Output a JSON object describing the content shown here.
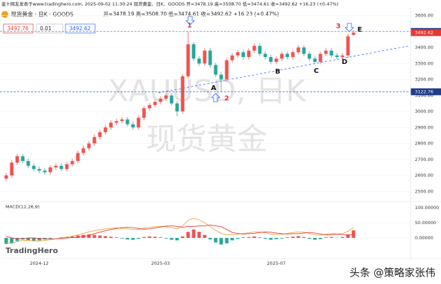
{
  "header": {
    "source_line": "金十网友发表于www.tradinghero.com, 2025-09-02 11:30:24 现货黄金、日K、GOODS 开=3478.19 高=3508.70 低=3474.61 收=3492.62 +16.23 (+0.47%)",
    "symbol": "现货黄金 · 日K · GOODS",
    "ohlc": "开=3478.19 高=3508.70 低=3474.61 收=3492.62 +16.23 (+0.47%)",
    "inputs": [
      "3492.76",
      "0.01",
      "3492.62"
    ]
  },
  "chart_data": [
    {
      "type": "candlestick",
      "watermark": [
        "XAUUSD, 日K",
        "现货黄金"
      ],
      "categories": [
        null,
        null,
        null,
        null,
        null,
        null,
        "2024-12",
        null,
        null,
        null,
        null,
        null,
        null,
        null,
        null,
        null,
        null,
        null,
        null,
        null,
        null,
        null,
        null,
        null,
        null,
        null,
        null,
        null,
        "2025-03",
        null,
        null,
        null,
        null,
        null,
        null,
        null,
        null,
        null,
        null,
        null,
        null,
        null,
        null,
        null,
        null,
        null,
        null,
        null,
        null,
        "2025-07",
        null,
        null,
        null,
        null,
        null,
        null,
        null,
        null,
        null,
        null,
        null,
        null,
        null,
        null
      ],
      "open": [
        2580,
        2600,
        2680,
        2720,
        2690,
        2660,
        2640,
        2630,
        2620,
        2650,
        2660,
        2640,
        2670,
        2690,
        2740,
        2770,
        2800,
        2840,
        2870,
        2900,
        2930,
        2940,
        2950,
        2920,
        2900,
        2960,
        3020,
        3040,
        3060,
        3080,
        3100,
        3050,
        3000,
        3220,
        3420,
        3330,
        3300,
        3380,
        3290,
        3230,
        3200,
        3320,
        3350,
        3370,
        3340,
        3380,
        3410,
        3360,
        3340,
        3310,
        3330,
        3360,
        3340,
        3370,
        3400,
        3360,
        3330,
        3310,
        3360,
        3380,
        3350,
        3340,
        3350,
        3478.19
      ],
      "high": [
        2615,
        2695,
        2735,
        2735,
        2705,
        2675,
        2655,
        2645,
        2665,
        2675,
        2675,
        2685,
        2705,
        2755,
        2785,
        2815,
        2855,
        2885,
        2915,
        2945,
        2955,
        2965,
        2965,
        2935,
        2975,
        3035,
        3055,
        3075,
        3095,
        3115,
        3115,
        3065,
        3235,
        3500,
        3435,
        3345,
        3395,
        3395,
        3305,
        3245,
        3335,
        3365,
        3385,
        3385,
        3395,
        3425,
        3425,
        3375,
        3355,
        3345,
        3375,
        3375,
        3385,
        3415,
        3415,
        3375,
        3345,
        3375,
        3395,
        3395,
        3365,
        3365,
        3485,
        3508.7
      ],
      "low": [
        2565,
        2585,
        2665,
        2675,
        2645,
        2625,
        2615,
        2605,
        2605,
        2635,
        2625,
        2625,
        2655,
        2675,
        2725,
        2755,
        2785,
        2825,
        2855,
        2885,
        2915,
        2925,
        2905,
        2885,
        2885,
        2945,
        3005,
        3025,
        3045,
        3065,
        3035,
        2970,
        2985,
        3205,
        3315,
        3285,
        3285,
        3275,
        3215,
        3120,
        3185,
        3305,
        3335,
        3325,
        3325,
        3365,
        3345,
        3325,
        3295,
        3295,
        3315,
        3325,
        3325,
        3355,
        3345,
        3315,
        3295,
        3295,
        3345,
        3335,
        3325,
        3325,
        3335,
        3474.61
      ],
      "close": [
        2600,
        2680,
        2720,
        2690,
        2660,
        2640,
        2630,
        2620,
        2650,
        2660,
        2640,
        2670,
        2690,
        2740,
        2770,
        2800,
        2840,
        2870,
        2900,
        2930,
        2940,
        2950,
        2920,
        2900,
        2960,
        3020,
        3040,
        3060,
        3080,
        3100,
        3050,
        3000,
        3220,
        3420,
        3330,
        3300,
        3380,
        3290,
        3230,
        3200,
        3320,
        3350,
        3370,
        3340,
        3380,
        3410,
        3360,
        3340,
        3310,
        3330,
        3360,
        3340,
        3370,
        3400,
        3360,
        3330,
        3310,
        3360,
        3380,
        3350,
        3340,
        3350,
        3470,
        3492.62
      ],
      "up_color": "#ef5350",
      "down_color": "#26a69a",
      "ylim": [
        2450,
        3645
      ],
      "yticks": [
        {
          "value": 3600,
          "label": "3600.00"
        },
        {
          "value": 3500,
          "label": "3500.00"
        },
        {
          "value": 3400,
          "label": "3400.00"
        },
        {
          "value": 3300,
          "label": "3300.00"
        },
        {
          "value": 3200,
          "label": "3200.00"
        },
        {
          "value": 3100,
          "label": "3100.00"
        },
        {
          "value": 3000,
          "label": "3000.00"
        },
        {
          "value": 2900,
          "label": "2900.00"
        },
        {
          "value": 2800,
          "label": "2800.00"
        },
        {
          "value": 2700,
          "label": "2700.00"
        },
        {
          "value": 2600,
          "label": "2600.00"
        },
        {
          "value": 2500,
          "label": "2500.00"
        }
      ],
      "hlines": [
        3499.73,
        3122.76
      ],
      "annotations": [
        "A",
        "B",
        "C",
        "D",
        "E",
        "1",
        "2",
        "3"
      ]
    },
    {
      "type": "macd",
      "title": "MACD(12,26,9)",
      "histogram": [
        -20,
        -18,
        -10,
        -5,
        -8,
        -10,
        -8,
        -5,
        -3,
        0,
        2,
        3,
        5,
        8,
        10,
        12,
        10,
        8,
        6,
        4,
        2,
        -2,
        -5,
        -6,
        -3,
        3,
        5,
        4,
        2,
        -2,
        -6,
        -8,
        5,
        20,
        28,
        20,
        10,
        -5,
        -15,
        -22,
        -18,
        -8,
        -3,
        2,
        3,
        5,
        2,
        -3,
        -6,
        -4,
        -2,
        2,
        4,
        6,
        3,
        -3,
        -6,
        -4,
        2,
        3,
        1,
        3,
        12,
        25
      ],
      "macd": [
        -15,
        -18,
        -12,
        -8,
        -8,
        -10,
        -10,
        -8,
        -6,
        -3,
        0,
        3,
        6,
        10,
        15,
        20,
        24,
        27,
        30,
        32,
        33,
        32,
        30,
        28,
        28,
        32,
        35,
        37,
        38,
        37,
        34,
        30,
        40,
        58,
        65,
        60,
        50,
        38,
        25,
        15,
        10,
        10,
        12,
        15,
        17,
        20,
        20,
        17,
        13,
        12,
        12,
        15,
        18,
        20,
        19,
        15,
        10,
        9,
        12,
        14,
        13,
        14,
        22,
        35
      ],
      "signal": [
        5,
        0,
        -2,
        -3,
        0,
        0,
        -2,
        -3,
        -3,
        -3,
        -2,
        0,
        1,
        2,
        5,
        8,
        14,
        19,
        24,
        28,
        31,
        34,
        35,
        34,
        31,
        29,
        30,
        33,
        36,
        39,
        40,
        38,
        35,
        38,
        37,
        40,
        40,
        43,
        40,
        37,
        28,
        18,
        15,
        13,
        14,
        15,
        18,
        20,
        19,
        16,
        14,
        13,
        14,
        14,
        16,
        18,
        16,
        13,
        10,
        11,
        12,
        11,
        10,
        10
      ],
      "macd_color": "#f2a13a",
      "signal_color": "#e53935",
      "positive_color": "#ef5350",
      "negative_color": "#26a69a",
      "ylim": [
        -66,
        116
      ],
      "yticks": [
        {
          "value": 100,
          "label": "100.00000"
        },
        {
          "value": 50,
          "label": "50.00000"
        },
        {
          "value": 0,
          "label": "0.00000"
        }
      ]
    }
  ],
  "footer": {
    "logo": "TradingHero",
    "credit": "头条 @策略家张伟"
  }
}
